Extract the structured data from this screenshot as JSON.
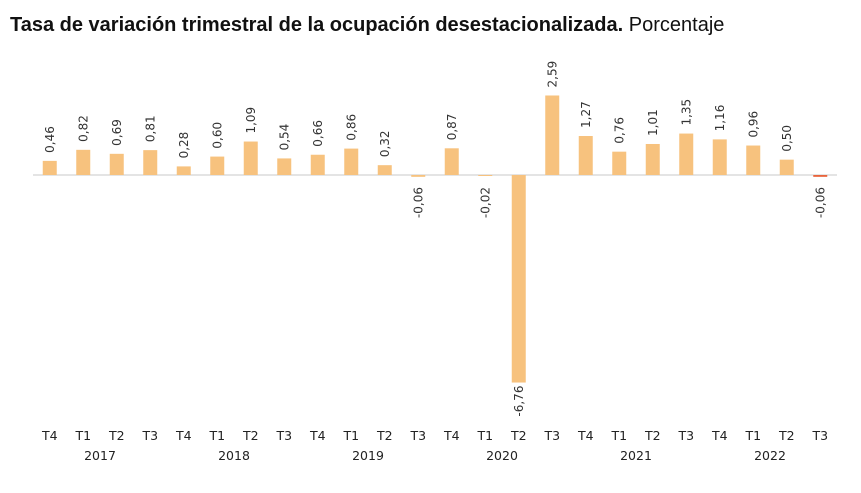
{
  "title": {
    "bold_text": "Tasa de variación trimestral de la ocupación desestacionalizada.",
    "normal_text": "Porcentaje"
  },
  "chart_data": {
    "type": "bar",
    "title": "Tasa de variación trimestral de la ocupación desestacionalizada. Porcentaje",
    "categories": [
      "T4",
      "T1",
      "T2",
      "T3",
      "T4",
      "T1",
      "T2",
      "T3",
      "T4",
      "T1",
      "T2",
      "T3",
      "T4",
      "T1",
      "T2",
      "T3",
      "T4",
      "T1",
      "T2",
      "T3",
      "T4",
      "T1",
      "T2",
      "T3"
    ],
    "years": [
      {
        "label": "2017",
        "start": 0,
        "end": 4
      },
      {
        "label": "2018",
        "start": 4,
        "end": 8
      },
      {
        "label": "2019",
        "start": 8,
        "end": 12
      },
      {
        "label": "2020",
        "start": 12,
        "end": 16
      },
      {
        "label": "2021",
        "start": 16,
        "end": 20
      },
      {
        "label": "2022",
        "start": 20,
        "end": 24
      }
    ],
    "values": [
      0.46,
      0.82,
      0.69,
      0.81,
      0.28,
      0.6,
      1.09,
      0.54,
      0.66,
      0.86,
      0.32,
      -0.06,
      0.87,
      -0.02,
      -6.76,
      2.59,
      1.27,
      0.76,
      1.01,
      1.35,
      1.16,
      0.96,
      0.5,
      -0.06
    ],
    "labels": [
      "0,46",
      "0,82",
      "0,69",
      "0,81",
      "0,28",
      "0,60",
      "1,09",
      "0,54",
      "0,66",
      "0,86",
      "0,32",
      "-0,06",
      "0,87",
      "-0,02",
      "-6,76",
      "2,59",
      "1,27",
      "0,76",
      "1,01",
      "1,35",
      "1,16",
      "0,96",
      "0,50",
      "-0,06"
    ],
    "bar_color": "#f7c27e",
    "last_bar_color": "#e8643c",
    "axis_color": "#c8c8c8",
    "grid": false,
    "legend": "none",
    "xlabel": "",
    "ylabel": ""
  }
}
